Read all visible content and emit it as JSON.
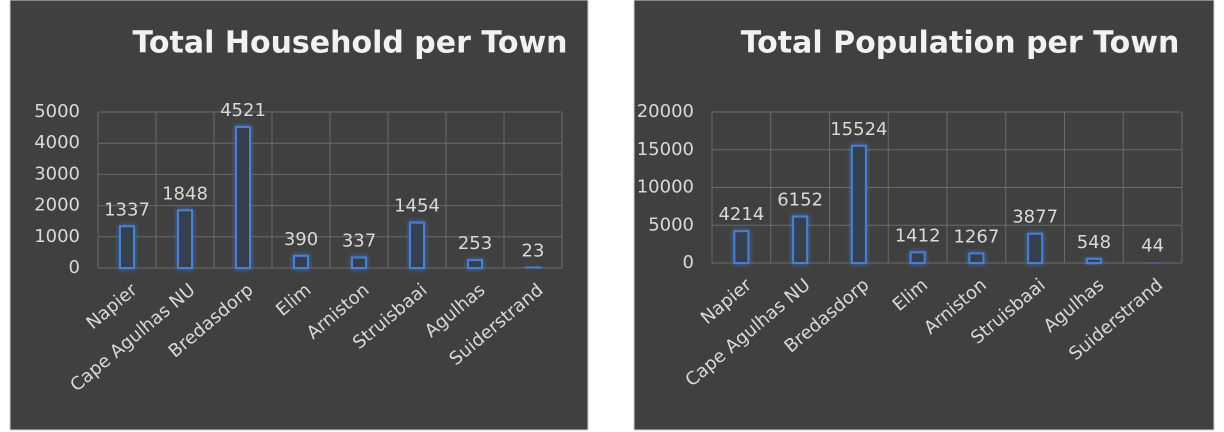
{
  "chart_data": [
    {
      "type": "bar",
      "title": "Total Household per Town",
      "categories": [
        "Napier",
        "Cape Agulhas NU",
        "Bredasdorp",
        "Elim",
        "Arniston",
        "Struisbaai",
        "Agulhas",
        "Suiderstrand"
      ],
      "values": [
        1337,
        1848,
        4521,
        390,
        337,
        1454,
        253,
        23
      ],
      "color": "#4a7fd4",
      "ylim": [
        0,
        5000
      ],
      "yticks": [
        0,
        1000,
        2000,
        3000,
        4000,
        5000
      ],
      "grid": true
    },
    {
      "type": "bar",
      "title": "Total Population per Town",
      "categories": [
        "Napier",
        "Cape Agulhas NU",
        "Bredasdorp",
        "Elim",
        "Arniston",
        "Struisbaai",
        "Agulhas",
        "Suiderstrand"
      ],
      "values": [
        4214,
        6152,
        15524,
        1412,
        1267,
        3877,
        548,
        44
      ],
      "color": "#4a7fd4",
      "ylim": [
        0,
        20000
      ],
      "yticks": [
        0,
        5000,
        10000,
        15000,
        20000
      ],
      "grid": true
    }
  ]
}
